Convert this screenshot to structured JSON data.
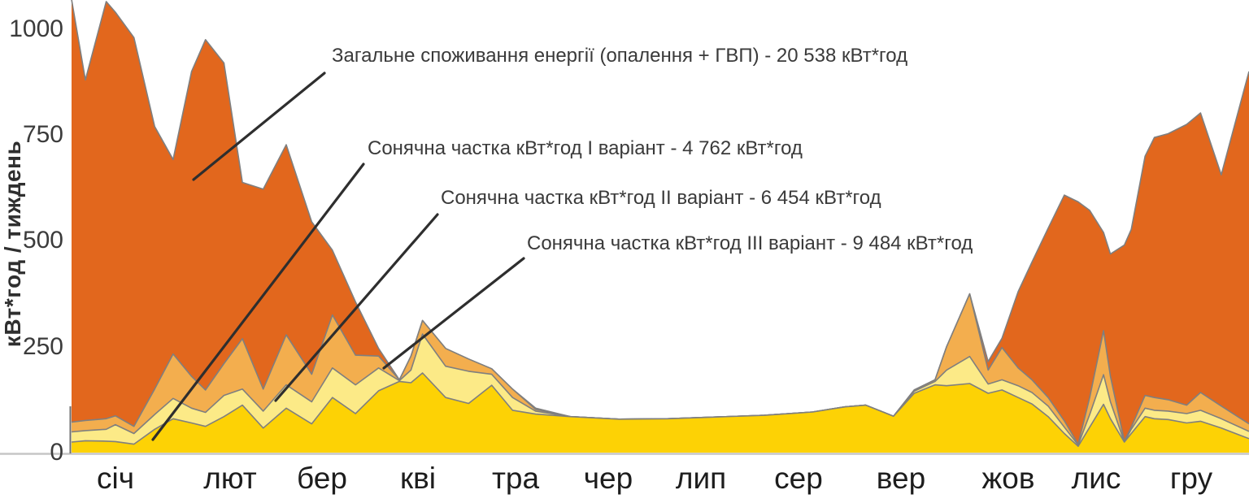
{
  "y_axis": {
    "title": "кВт*год / тиждень",
    "ticks": [
      "0",
      "250",
      "500",
      "750",
      "1000"
    ]
  },
  "x_axis": {
    "months": [
      "січ",
      "лют",
      "бер",
      "кві",
      "тра",
      "чер",
      "лип",
      "сер",
      "вер",
      "жов",
      "лис",
      "гру"
    ]
  },
  "annotations": [
    {
      "text": "Загальне споживання енергії (опалення + ГВП) - 20 538 кВт*год"
    },
    {
      "text": "Сонячна частка кВт*год I варіант - 4 762 кВт*год"
    },
    {
      "text": "Сонячна частка кВт*год II варіант - 6 454 кВт*год"
    },
    {
      "text": "Сонячна частка кВт*год III варіант - 9 484 кВт*год"
    }
  ],
  "colors": {
    "total": "#E2671D",
    "variant3": "#F3AE4E",
    "variant2": "#FCEA87",
    "variant1": "#FDD205",
    "outline": "#7F7F7F",
    "baseline": "#C6C6C6",
    "leader": "#2E2E2E"
  },
  "chart_data": {
    "type": "area",
    "x_unit": "week_of_year",
    "ylabel": "кВт*год / тиждень",
    "ylim": [
      0,
      1070
    ],
    "yticks": [
      0,
      250,
      500,
      750,
      1000
    ],
    "months": [
      "січ",
      "лют",
      "бер",
      "кві",
      "тра",
      "чер",
      "лип",
      "сер",
      "вер",
      "жов",
      "лис",
      "гру"
    ],
    "legend_position": "annotated-callouts",
    "grid": false,
    "weeks": [
      1,
      1.6,
      2.5,
      2.9,
      3.7,
      4.6,
      5.4,
      6.2,
      6.8,
      7.6,
      8.4,
      9.3,
      10.3,
      11.4,
      12.3,
      13.3,
      14.3,
      15.2,
      15.7,
      16.2,
      17.2,
      18.2,
      19.2,
      20.1,
      21.1,
      22.6,
      24.7,
      26.8,
      28.9,
      31,
      33.1,
      34.5,
      35.4,
      36.6,
      37.5,
      38.4,
      38.9,
      39.9,
      40.7,
      41.3,
      42,
      42.6,
      43.3,
      44,
      44.6,
      45.1,
      45.7,
      46,
      46.6,
      46.9,
      47.5,
      47.9,
      48.5,
      49.3,
      49.9,
      50.8,
      52
    ],
    "series": [
      {
        "name": "Загальне споживання енергії (опалення + ГВП)",
        "annual_total_kwh": 20538,
        "color_key": "total",
        "values": [
          1070,
          880,
          1065,
          1040,
          980,
          770,
          692,
          900,
          975,
          920,
          638,
          622,
          727,
          545,
          478,
          356,
          246,
          172,
          228,
          312,
          246,
          221,
          198,
          150,
          105,
          85,
          79,
          80,
          84,
          88,
          96,
          108,
          112,
          86,
          148,
          172,
          250,
          375,
          215,
          270,
          380,
          450,
          530,
          608,
          592,
          572,
          520,
          469,
          490,
          527,
          700,
          744,
          753,
          775,
          802,
          656,
          900
        ]
      },
      {
        "name": "Сонячна частка III варіант",
        "annual_total_kwh": 9484,
        "color_key": "variant3",
        "values": [
          72,
          76,
          80,
          87,
          62,
          150,
          233,
          180,
          148,
          210,
          269,
          150,
          278,
          185,
          325,
          230,
          228,
          172,
          228,
          312,
          246,
          221,
          198,
          150,
          102,
          85,
          79,
          80,
          84,
          88,
          96,
          108,
          112,
          86,
          148,
          172,
          250,
          375,
          195,
          248,
          200,
          172,
          130,
          75,
          20,
          130,
          288,
          180,
          27,
          60,
          135,
          130,
          125,
          112,
          142,
          110,
          68
        ]
      },
      {
        "name": "Сонячна частка II варіант",
        "annual_total_kwh": 6454,
        "color_key": "variant2",
        "values": [
          49,
          52,
          55,
          66,
          45,
          90,
          128,
          105,
          95,
          135,
          150,
          98,
          160,
          120,
          200,
          160,
          200,
          170,
          195,
          280,
          204,
          192,
          185,
          130,
          98,
          85,
          79,
          80,
          84,
          88,
          96,
          108,
          112,
          86,
          145,
          168,
          195,
          227,
          162,
          172,
          158,
          142,
          110,
          60,
          18,
          90,
          184,
          120,
          25,
          55,
          105,
          100,
          98,
          92,
          100,
          80,
          50
        ]
      },
      {
        "name": "Сонячна частка I варіант",
        "annual_total_kwh": 4762,
        "color_key": "variant1",
        "values": [
          25,
          28,
          27,
          26,
          20,
          55,
          80,
          70,
          62,
          85,
          112,
          58,
          105,
          68,
          130,
          92,
          146,
          168,
          165,
          188,
          130,
          116,
          159,
          100,
          91,
          85,
          79,
          80,
          84,
          88,
          96,
          108,
          112,
          86,
          140,
          160,
          158,
          163,
          140,
          148,
          130,
          115,
          85,
          45,
          15,
          60,
          114,
          80,
          25,
          45,
          85,
          80,
          78,
          70,
          74,
          58,
          33
        ]
      }
    ]
  }
}
